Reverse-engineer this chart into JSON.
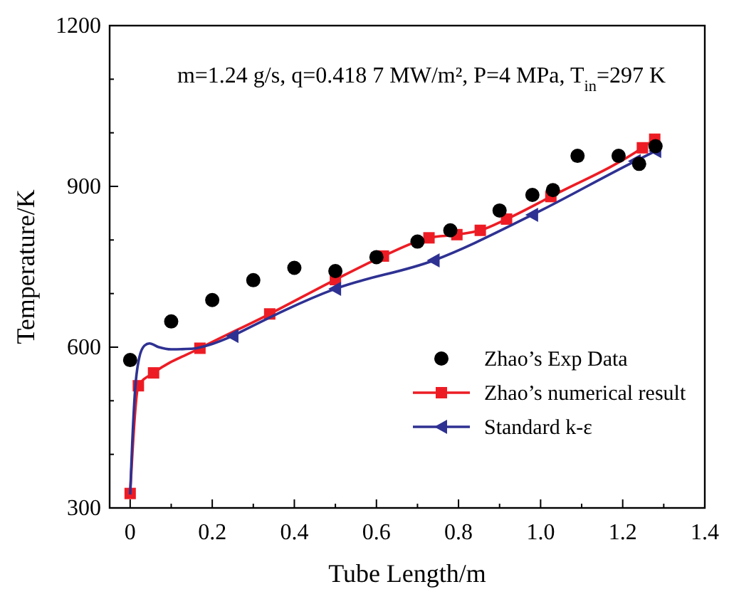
{
  "chart_data": {
    "type": "line",
    "xlabel": "Tube Length/m",
    "ylabel": "Temperature/K",
    "annotations": [
      "m=1.24 g/s, q=0.418 7 MW/m², P=4 MPa, T$_{in}$=297 K"
    ],
    "xlim": [
      -0.05,
      1.4
    ],
    "ylim": [
      300,
      1200
    ],
    "xticks": [
      0,
      {
        "value": 0.1,
        "label": null
      },
      0.2,
      {
        "value": 0.3,
        "label": null
      },
      0.4,
      {
        "value": 0.5,
        "label": null
      },
      0.6,
      {
        "value": 0.7,
        "label": null
      },
      0.8,
      {
        "value": 0.9,
        "label": null
      },
      {
        "value": 1.0,
        "label": "1.0"
      },
      {
        "value": 1.1,
        "label": null
      },
      1.2,
      {
        "value": 1.3,
        "label": null
      },
      1.4
    ],
    "yticks": [
      300,
      {
        "value": 400,
        "label": null
      },
      {
        "value": 500,
        "label": null
      },
      600,
      {
        "value": 700,
        "label": null
      },
      {
        "value": 800,
        "label": null
      },
      900,
      {
        "value": 1000,
        "label": null
      },
      {
        "value": 1100,
        "label": null
      },
      1200
    ],
    "legend": "bottom right",
    "grid": false,
    "series": [
      {
        "name": "Zhao’s Exp Data",
        "type": "scatter",
        "marker": "circle",
        "color": "#000000",
        "x": [
          0,
          0.1,
          0.2,
          0.3,
          0.4,
          0.5,
          0.6,
          0.7,
          0.78,
          0.9,
          0.98,
          1.03,
          1.09,
          1.19,
          1.24,
          1.28
        ],
        "values": [
          576,
          648,
          688,
          725,
          748,
          742,
          768,
          797,
          818,
          855,
          884,
          893,
          957,
          957,
          942,
          975
        ]
      },
      {
        "name": "Zhao’s numerical result",
        "marker": "square",
        "color": "#ed1c24",
        "x": [
          0,
          0.02,
          0.057,
          0.17,
          0.34,
          0.5,
          0.617,
          0.728,
          0.796,
          0.853,
          0.917,
          1.025,
          1.248,
          1.278
        ],
        "values": [
          327,
          528,
          552,
          598,
          662,
          726,
          770,
          804,
          810,
          818,
          839,
          881,
          972,
          988
        ]
      },
      {
        "name": "Standard k-ε",
        "marker": "triangle",
        "color": "#2e3192",
        "x": [
          0.25,
          0.5,
          0.74,
          0.98,
          1.23,
          1.28
        ],
        "values": [
          621,
          709,
          762,
          847,
          947,
          966
        ]
      },
      {
        "marker": "none",
        "color": "#2e3192",
        "x": [
          0,
          0.005,
          0.012,
          0.022,
          0.035,
          0.047,
          0.07,
          0.1,
          0.15,
          0.2,
          0.25
        ],
        "values": [
          325,
          420,
          520,
          580,
          603,
          607,
          600,
          596,
          597,
          606,
          621
        ]
      }
    ]
  }
}
